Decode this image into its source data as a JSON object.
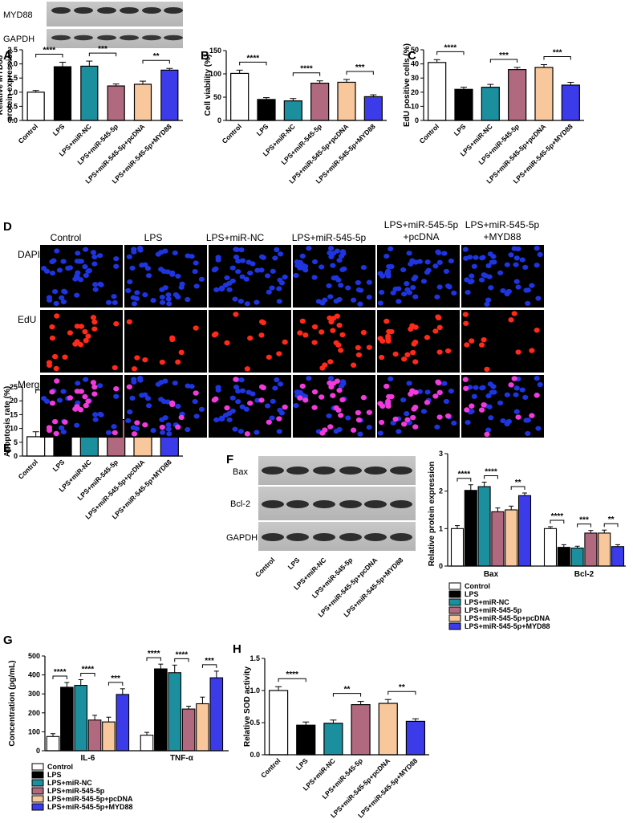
{
  "colors": {
    "control": "#ffffff",
    "lps": "#000000",
    "lps_mirnc": "#1b8f9e",
    "lps_mir545": "#b0697f",
    "lps_mir545_pcdna": "#f8c79c",
    "lps_mir545_myd88": "#3b3bea"
  },
  "groups": [
    "Control",
    "LPS",
    "LPS+miR-NC",
    "LPS+miR-545-5p",
    "LPS+miR-545-5p+pcDNA",
    "LPS+miR-545-5p+MYD88"
  ],
  "panel_letters": {
    "A": "A",
    "B": "B",
    "C": "C",
    "D": "D",
    "E": "E",
    "F": "F",
    "G": "G",
    "H": "H"
  },
  "blots_top": {
    "myd88": "MYD88",
    "gapdh": "GAPDH"
  },
  "blots_f": {
    "bax": "Bax",
    "bcl2": "Bcl-2",
    "gapdh": "GAPDH"
  },
  "microscopy": {
    "columns": [
      "Control",
      "LPS",
      "LPS+miR-NC",
      "LPS+miR-545-5p",
      "LPS+miR-545-5p\n+pcDNA",
      "LPS+miR-545-5p\n+MYD88"
    ],
    "rows": [
      "DAPI",
      "EdU",
      "Merge"
    ]
  },
  "chart_data": [
    {
      "panel": "A",
      "type": "bar",
      "ylabel": "Relative MYD88\nprotein expression",
      "ylim": [
        0,
        2.5
      ],
      "yticks": [
        0.0,
        0.5,
        1.0,
        1.5,
        2.0,
        2.5
      ],
      "ytick_labels": [
        "0.0",
        "0.5",
        "1.0",
        "1.5",
        "2.0",
        "2.5"
      ],
      "values": [
        1.0,
        1.9,
        1.92,
        1.22,
        1.28,
        1.78
      ],
      "errors": [
        0.06,
        0.16,
        0.18,
        0.07,
        0.11,
        0.06
      ],
      "significance": [
        {
          "from": 0,
          "to": 1,
          "label": "****"
        },
        {
          "from": 2,
          "to": 3,
          "label": "***"
        },
        {
          "from": 4,
          "to": 5,
          "label": "**"
        }
      ]
    },
    {
      "panel": "B",
      "type": "bar",
      "ylabel": "Cell viability (%)",
      "ylim": [
        0,
        150
      ],
      "yticks": [
        0,
        50,
        100,
        150
      ],
      "ytick_labels": [
        "0",
        "50",
        "100",
        "150"
      ],
      "values": [
        101,
        45,
        42,
        80,
        82,
        51
      ],
      "errors": [
        7,
        4,
        5,
        5,
        6,
        4
      ],
      "significance": [
        {
          "from": 0,
          "to": 1,
          "label": "****"
        },
        {
          "from": 2,
          "to": 3,
          "label": "****"
        },
        {
          "from": 4,
          "to": 5,
          "label": "***"
        }
      ]
    },
    {
      "panel": "C",
      "type": "bar",
      "ylabel": "EdU positive cells (%)",
      "ylim": [
        0,
        50
      ],
      "yticks": [
        0,
        10,
        20,
        30,
        40,
        50
      ],
      "ytick_labels": [
        "0",
        "10",
        "20",
        "30",
        "40",
        "50"
      ],
      "values": [
        41,
        22,
        23.5,
        36,
        37.5,
        25
      ],
      "errors": [
        2,
        1.5,
        2,
        1.5,
        2,
        2
      ],
      "significance": [
        {
          "from": 0,
          "to": 1,
          "label": "****"
        },
        {
          "from": 2,
          "to": 3,
          "label": "***"
        },
        {
          "from": 4,
          "to": 5,
          "label": "***"
        }
      ]
    },
    {
      "panel": "E",
      "type": "bar",
      "ylabel": "Apoptosis rate (%)",
      "ylim": [
        0,
        25
      ],
      "yticks": [
        0,
        5,
        10,
        15,
        20,
        25
      ],
      "ytick_labels": [
        "0",
        "5",
        "10",
        "15",
        "20",
        "25"
      ],
      "values": [
        7,
        19.5,
        20.5,
        13.2,
        12.2,
        19
      ],
      "errors": [
        1.8,
        1.5,
        2,
        1.5,
        1.3,
        1.2
      ],
      "significance": [
        {
          "from": 0,
          "to": 1,
          "label": "****"
        },
        {
          "from": 2,
          "to": 3,
          "label": "**"
        },
        {
          "from": 4,
          "to": 5,
          "label": "**"
        }
      ]
    },
    {
      "panel": "F",
      "type": "bar",
      "ylabel": "Relative protein expression",
      "ylim": [
        0,
        3
      ],
      "yticks": [
        0,
        1,
        2,
        3
      ],
      "ytick_labels": [
        "0",
        "1",
        "2",
        "3"
      ],
      "categories": [
        "Bax",
        "Bcl-2"
      ],
      "values": [
        [
          1.0,
          2.02,
          2.12,
          1.45,
          1.5,
          1.88
        ],
        [
          1.0,
          0.5,
          0.48,
          0.88,
          0.88,
          0.52
        ]
      ],
      "errors": [
        [
          0.08,
          0.15,
          0.12,
          0.1,
          0.1,
          0.07
        ],
        [
          0.05,
          0.07,
          0.05,
          0.07,
          0.08,
          0.05
        ]
      ],
      "significance": [
        [
          {
            "from": 0,
            "to": 1,
            "label": "****"
          },
          {
            "from": 2,
            "to": 3,
            "label": "****"
          },
          {
            "from": 4,
            "to": 5,
            "label": "**"
          }
        ],
        [
          {
            "from": 0,
            "to": 1,
            "label": "****"
          },
          {
            "from": 2,
            "to": 3,
            "label": "***"
          },
          {
            "from": 4,
            "to": 5,
            "label": "**"
          }
        ]
      ],
      "legend": "bottom"
    },
    {
      "panel": "G",
      "type": "bar",
      "ylabel": "Concentration (pg/mL)",
      "ylim": [
        0,
        500
      ],
      "yticks": [
        0,
        100,
        200,
        300,
        400,
        500
      ],
      "ytick_labels": [
        "0",
        "100",
        "200",
        "300",
        "400",
        "500"
      ],
      "categories": [
        "IL-6",
        "TNF-α"
      ],
      "values": [
        [
          75,
          335,
          345,
          162,
          152,
          297
        ],
        [
          82,
          432,
          412,
          220,
          248,
          385
        ]
      ],
      "errors": [
        [
          15,
          25,
          30,
          25,
          25,
          30
        ],
        [
          15,
          25,
          40,
          15,
          35,
          35
        ]
      ],
      "significance": [
        [
          {
            "from": 0,
            "to": 1,
            "label": "****"
          },
          {
            "from": 2,
            "to": 3,
            "label": "****"
          },
          {
            "from": 4,
            "to": 5,
            "label": "***"
          }
        ],
        [
          {
            "from": 0,
            "to": 1,
            "label": "****"
          },
          {
            "from": 2,
            "to": 3,
            "label": "****"
          },
          {
            "from": 4,
            "to": 5,
            "label": "***"
          }
        ]
      ],
      "legend": "bottom"
    },
    {
      "panel": "H",
      "type": "bar",
      "ylabel": "Relative SOD activity",
      "ylim": [
        0,
        1.5
      ],
      "yticks": [
        0.0,
        0.5,
        1.0,
        1.5
      ],
      "ytick_labels": [
        "0.0",
        "0.5",
        "1.0",
        "1.5"
      ],
      "values": [
        1.0,
        0.46,
        0.49,
        0.78,
        0.8,
        0.52
      ],
      "errors": [
        0.06,
        0.05,
        0.05,
        0.05,
        0.06,
        0.04
      ],
      "significance": [
        {
          "from": 0,
          "to": 1,
          "label": "****"
        },
        {
          "from": 2,
          "to": 3,
          "label": "**"
        },
        {
          "from": 4,
          "to": 5,
          "label": "**"
        }
      ]
    }
  ]
}
